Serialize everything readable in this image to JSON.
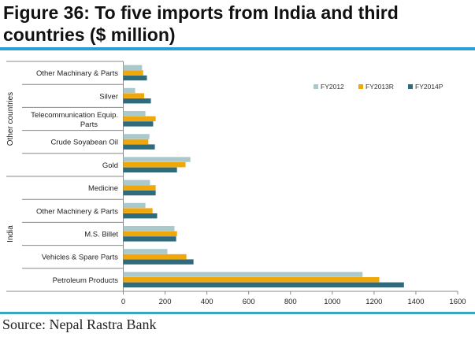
{
  "title": "Figure 36: To five imports from India and third countries ($ million)",
  "source": "Source: Nepal Rastra Bank",
  "chart_data": {
    "type": "bar",
    "orientation": "horizontal",
    "title": "Figure 36: To five imports from India and third countries ($ million)",
    "groups": [
      {
        "name": "Other countries",
        "categories": [
          "Other Machinary & Parts",
          "Silver",
          "Telecommunication Equip. Parts",
          "Crude Soyabean Oil",
          "Gold"
        ]
      },
      {
        "name": "India",
        "categories": [
          "Medicine",
          "Other Machinery & Parts",
          "M.S. Billet",
          "Vehicles & Spare Parts",
          "Petroleum Products"
        ]
      }
    ],
    "categories": [
      "Other Machinary & Parts",
      "Silver",
      "Telecommunication Equip. Parts",
      "Crude Soyabean Oil",
      "Gold",
      "Medicine",
      "Other Machinery & Parts",
      "M.S. Billet",
      "Vehicles & Spare Parts",
      "Petroleum Products"
    ],
    "series": [
      {
        "name": "FY2012",
        "color": "#a9c9cd",
        "values": [
          90,
          57,
          106,
          125,
          321,
          128,
          106,
          245,
          211,
          1145
        ]
      },
      {
        "name": "FY2013R",
        "color": "#f0a70a",
        "values": [
          95,
          100,
          155,
          120,
          298,
          155,
          140,
          257,
          302,
          1225
        ]
      },
      {
        "name": "FY2014P",
        "color": "#2f6b7a",
        "values": [
          113,
          132,
          143,
          151,
          257,
          155,
          162,
          253,
          336,
          1343
        ]
      }
    ],
    "xlim": [
      0,
      1600
    ],
    "xticks": [
      "0",
      "200",
      "400",
      "600",
      "800",
      "1000",
      "1200",
      "1400",
      "1600"
    ],
    "legend_position": "top-right",
    "grid": false
  }
}
